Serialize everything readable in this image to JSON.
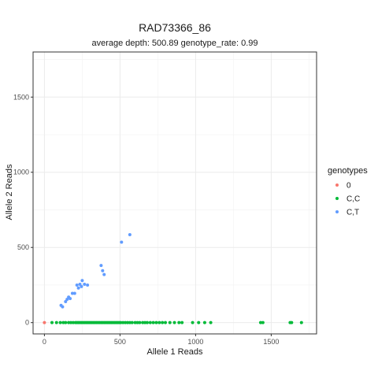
{
  "chart_data": {
    "type": "scatter",
    "title": "RAD73366_86",
    "subtitle": "average depth:  500.89  genotype_rate:  0.99",
    "xlabel": "Allele 1 Reads",
    "ylabel": "Allele 2 Reads",
    "xlim": [
      -75,
      1800
    ],
    "ylim": [
      -75,
      1800
    ],
    "x_ticks": [
      0,
      500,
      1000,
      1500
    ],
    "y_ticks": [
      0,
      500,
      1000,
      1500
    ],
    "grid": true,
    "legend_title": "genotypes",
    "legend_position": "right",
    "series": [
      {
        "name": "0",
        "color": "#F8766D",
        "points": [
          [
            0,
            0
          ]
        ]
      },
      {
        "name": "C,C",
        "color": "#00BA38",
        "points": [
          [
            50,
            0
          ],
          [
            80,
            0
          ],
          [
            105,
            0
          ],
          [
            125,
            0
          ],
          [
            140,
            0
          ],
          [
            160,
            0
          ],
          [
            175,
            0
          ],
          [
            190,
            0
          ],
          [
            205,
            0
          ],
          [
            215,
            0
          ],
          [
            225,
            0
          ],
          [
            235,
            0
          ],
          [
            245,
            0
          ],
          [
            255,
            0
          ],
          [
            265,
            0
          ],
          [
            275,
            0
          ],
          [
            285,
            0
          ],
          [
            295,
            0
          ],
          [
            305,
            0
          ],
          [
            315,
            0
          ],
          [
            325,
            0
          ],
          [
            335,
            0
          ],
          [
            345,
            0
          ],
          [
            355,
            0
          ],
          [
            365,
            0
          ],
          [
            375,
            0
          ],
          [
            385,
            0
          ],
          [
            395,
            0
          ],
          [
            405,
            0
          ],
          [
            415,
            0
          ],
          [
            425,
            0
          ],
          [
            435,
            0
          ],
          [
            445,
            0
          ],
          [
            455,
            0
          ],
          [
            465,
            0
          ],
          [
            475,
            0
          ],
          [
            485,
            0
          ],
          [
            495,
            0
          ],
          [
            505,
            0
          ],
          [
            520,
            0
          ],
          [
            535,
            0
          ],
          [
            550,
            0
          ],
          [
            565,
            0
          ],
          [
            580,
            0
          ],
          [
            600,
            0
          ],
          [
            615,
            0
          ],
          [
            630,
            0
          ],
          [
            650,
            0
          ],
          [
            665,
            0
          ],
          [
            680,
            0
          ],
          [
            700,
            0
          ],
          [
            720,
            0
          ],
          [
            740,
            0
          ],
          [
            760,
            0
          ],
          [
            780,
            0
          ],
          [
            800,
            0
          ],
          [
            830,
            0
          ],
          [
            860,
            0
          ],
          [
            890,
            0
          ],
          [
            910,
            0
          ],
          [
            980,
            0
          ],
          [
            1020,
            0
          ],
          [
            1060,
            0
          ],
          [
            1100,
            0
          ],
          [
            1430,
            0
          ],
          [
            1445,
            0
          ],
          [
            1625,
            0
          ],
          [
            1635,
            0
          ],
          [
            1700,
            0
          ]
        ]
      },
      {
        "name": "C,T",
        "color": "#619CFF",
        "points": [
          [
            110,
            115
          ],
          [
            120,
            105
          ],
          [
            140,
            140
          ],
          [
            150,
            155
          ],
          [
            160,
            170
          ],
          [
            170,
            160
          ],
          [
            185,
            195
          ],
          [
            200,
            195
          ],
          [
            215,
            250
          ],
          [
            225,
            230
          ],
          [
            235,
            255
          ],
          [
            245,
            240
          ],
          [
            250,
            280
          ],
          [
            265,
            255
          ],
          [
            285,
            250
          ],
          [
            375,
            380
          ],
          [
            385,
            345
          ],
          [
            395,
            320
          ],
          [
            510,
            535
          ],
          [
            565,
            585
          ]
        ]
      }
    ]
  }
}
